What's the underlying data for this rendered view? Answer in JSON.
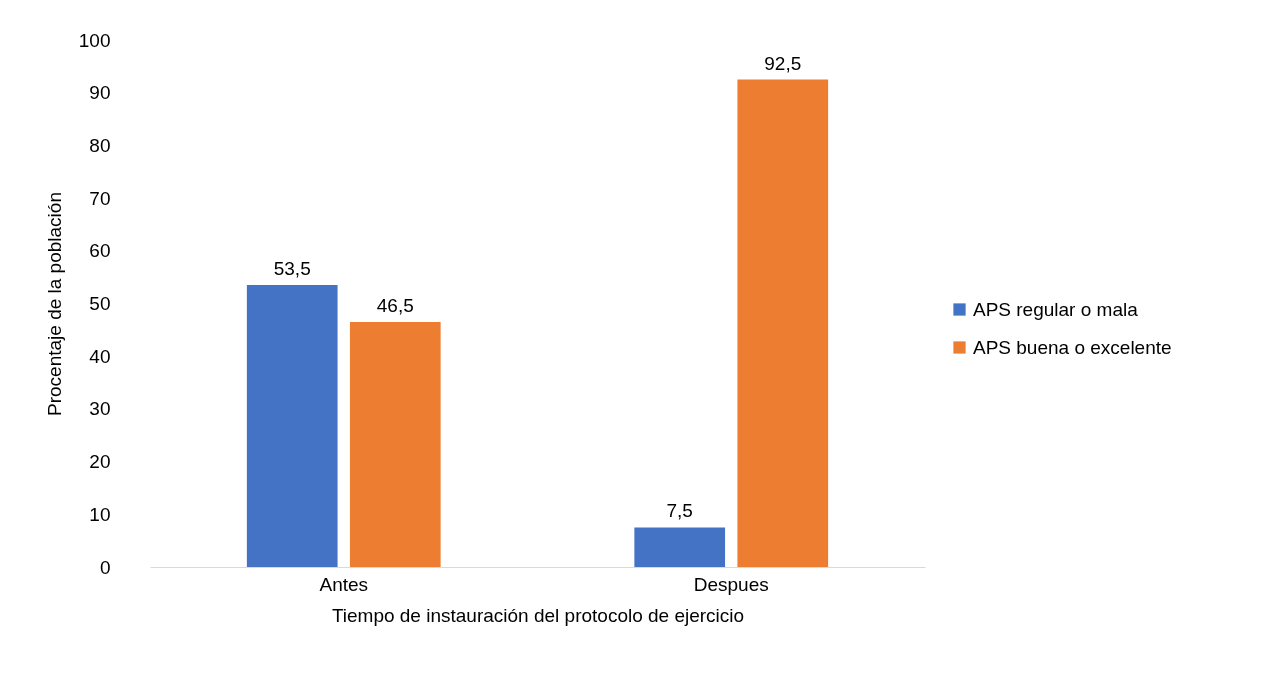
{
  "chart_data": {
    "type": "bar",
    "xlabel": "Tiempo de instauración del protocolo de ejercicio",
    "ylabel": "Procentaje de la población",
    "categories": [
      "Antes",
      "Despues"
    ],
    "series": [
      {
        "name": "APS regular o mala",
        "color": "#4472c4",
        "values": [
          53.5,
          7.5
        ],
        "value_labels": [
          "53,5",
          "7,5"
        ]
      },
      {
        "name": "APS buena o excelente",
        "color": "#ed7d31",
        "values": [
          46.5,
          92.5
        ],
        "value_labels": [
          "46,5",
          "92,5"
        ]
      }
    ],
    "ylim": [
      0,
      100
    ],
    "yticks": [
      0,
      10,
      20,
      30,
      40,
      50,
      60,
      70,
      80,
      90,
      100
    ],
    "grid": false,
    "legend": "right"
  }
}
